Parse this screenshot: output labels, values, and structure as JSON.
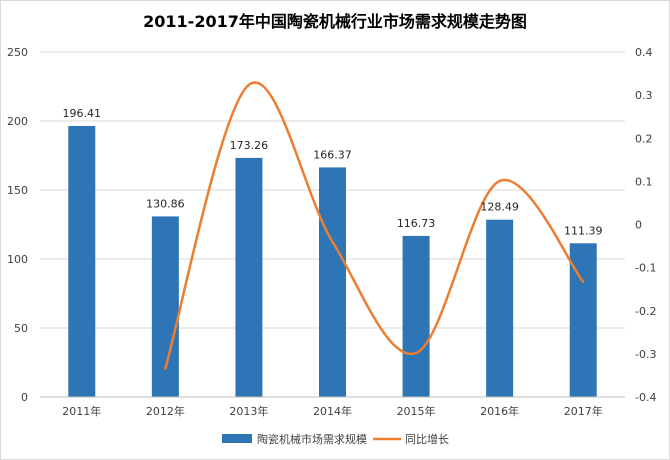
{
  "chart_data": {
    "type": "bar",
    "title": "2011-2017年中国陶瓷机械行业市场需求规模走势图",
    "categories": [
      "2011年",
      "2012年",
      "2013年",
      "2014年",
      "2015年",
      "2016年",
      "2017年"
    ],
    "series": [
      {
        "name": "陶瓷机械市场需求规模",
        "type": "bar",
        "axis": "left",
        "values": [
          196.41,
          130.86,
          173.26,
          166.37,
          116.73,
          128.49,
          111.39
        ],
        "color": "#2E75B6"
      },
      {
        "name": "同比增长",
        "type": "line",
        "axis": "right",
        "smooth": true,
        "values": [
          null,
          -0.334,
          0.324,
          -0.04,
          -0.298,
          0.101,
          -0.133
        ],
        "color": "#ED7D31"
      }
    ],
    "ylim_left": [
      0,
      250
    ],
    "yticks_left": [
      0,
      50,
      100,
      150,
      200,
      250
    ],
    "ylim_right": [
      -0.4,
      0.4
    ],
    "yticks_right": [
      "-0.4",
      "-0.3",
      "-0.2",
      "-0.1",
      "0",
      "0.1",
      "0.2",
      "0.3",
      "0.4"
    ],
    "data_labels": [
      "196.41",
      "130.86",
      "173.26",
      "166.37",
      "116.73",
      "128.49",
      "111.39"
    ],
    "grid": true,
    "legend_position": "bottom"
  }
}
